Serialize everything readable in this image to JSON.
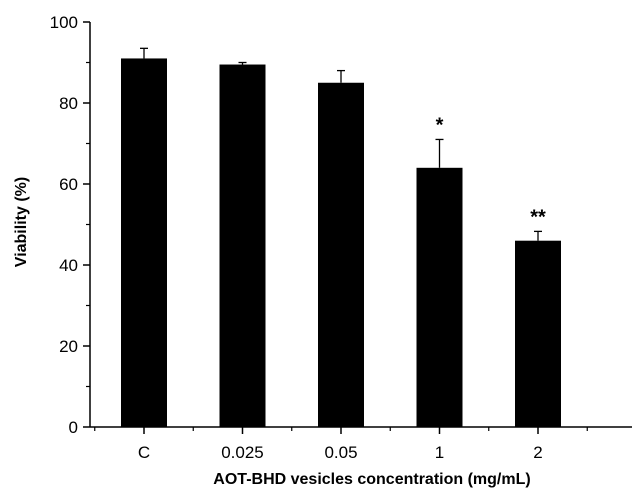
{
  "chart_data": {
    "type": "bar",
    "categories": [
      "C",
      "0.025",
      "0.05",
      "1",
      "2"
    ],
    "values": [
      91,
      89.5,
      85,
      64,
      46
    ],
    "errors": [
      2.5,
      0.5,
      3,
      7,
      2.3
    ],
    "annotations": [
      "",
      "",
      "",
      "*",
      "**"
    ],
    "xlabel": "AOT-BHD vesicles concentration (mg/mL)",
    "ylabel": "Viability (%)",
    "ylim": [
      0,
      100
    ],
    "yticks": [
      0,
      20,
      40,
      60,
      80,
      100
    ],
    "bar_color": "#000000",
    "grid": false,
    "legend": "none"
  }
}
